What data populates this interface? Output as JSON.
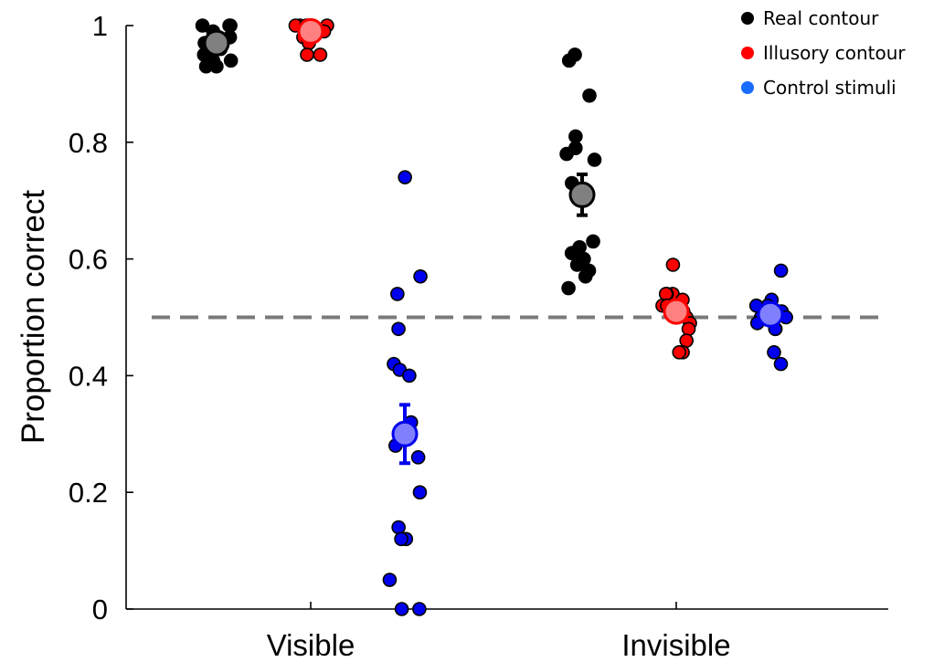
{
  "chart_data": {
    "type": "scatter",
    "title": "",
    "xlabel": "",
    "ylabel": "Proportion correct",
    "ylim": [
      0,
      1
    ],
    "yticks": [
      0,
      0.2,
      0.4,
      0.6,
      0.8,
      1
    ],
    "ytick_labels": [
      "0",
      "0.2",
      "0.4",
      "0.6",
      "0.8",
      "1"
    ],
    "categories": [
      "Visible",
      "Invisible"
    ],
    "reference_line": {
      "y": 0.5,
      "style": "dashed",
      "color": "#7a7a7a"
    },
    "legend": {
      "placement": "top-right"
    },
    "grid": false,
    "series": [
      {
        "name": "Real contour",
        "color": "#000000",
        "mean_color": "#808080",
        "groups": [
          {
            "category": "Visible",
            "mean": 0.97,
            "error": 0.005,
            "points": [
              1.0,
              1.0,
              1.0,
              0.99,
              0.98,
              0.97,
              0.97,
              0.96,
              0.96,
              0.95,
              0.95,
              0.94,
              0.94,
              0.93,
              0.93
            ]
          },
          {
            "category": "Invisible",
            "mean": 0.71,
            "error": 0.035,
            "points": [
              0.95,
              0.94,
              0.88,
              0.81,
              0.79,
              0.78,
              0.77,
              0.73,
              0.63,
              0.62,
              0.61,
              0.6,
              0.59,
              0.58,
              0.57,
              0.55
            ]
          }
        ]
      },
      {
        "name": "Illusory contour",
        "color": "#ff0000",
        "mean_color": "#ff8080",
        "groups": [
          {
            "category": "Visible",
            "mean": 0.99,
            "error": 0.005,
            "points": [
              1.0,
              1.0,
              1.0,
              1.0,
              1.0,
              0.99,
              0.99,
              0.99,
              0.98,
              0.98,
              0.97,
              0.95,
              0.95
            ]
          },
          {
            "category": "Invisible",
            "mean": 0.51,
            "error": 0.015,
            "points": [
              0.59,
              0.54,
              0.54,
              0.54,
              0.53,
              0.52,
              0.52,
              0.51,
              0.5,
              0.49,
              0.48,
              0.46,
              0.44,
              0.44
            ]
          }
        ]
      },
      {
        "name": "Control stimuli",
        "color": "#0000ee",
        "mean_color": "#8080ff",
        "groups": [
          {
            "category": "Visible",
            "mean": 0.3,
            "error": 0.05,
            "points": [
              0.74,
              0.57,
              0.54,
              0.48,
              0.42,
              0.41,
              0.4,
              0.32,
              0.28,
              0.26,
              0.2,
              0.14,
              0.12,
              0.12,
              0.05,
              0.0,
              0.0
            ]
          },
          {
            "category": "Invisible",
            "mean": 0.505,
            "error": 0.012,
            "points": [
              0.58,
              0.53,
              0.52,
              0.52,
              0.51,
              0.51,
              0.5,
              0.5,
              0.49,
              0.48,
              0.48,
              0.44,
              0.42
            ]
          }
        ]
      }
    ]
  }
}
